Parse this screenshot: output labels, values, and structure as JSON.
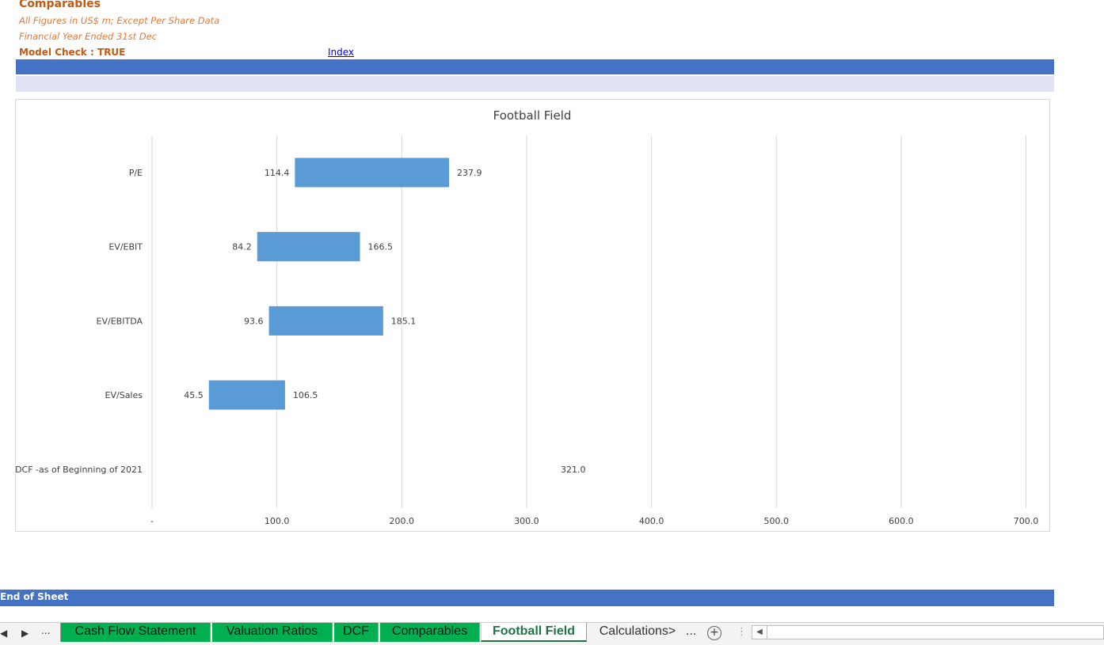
{
  "header": {
    "title": "Comparables",
    "subtitle1": "All Figures in US$ m; Except Per Share Data",
    "subtitle2": "Financial Year Ended 31st Dec",
    "model_check": "Model Check : TRUE",
    "index_link": "Index"
  },
  "colors": {
    "accent_blue": "#4472c4",
    "light_band": "#dfe3f4",
    "bar": "#5b9bd5",
    "header_orange": "#c55a11",
    "tab_green": "#00b050",
    "active_tab_text": "#217346"
  },
  "chart_data": {
    "type": "bar",
    "orientation": "horizontal",
    "subtype": "floating range (football field)",
    "title": "Football Field",
    "categories": [
      "P/E",
      "EV/EBIT",
      "EV/EBITDA",
      "EV/Sales",
      "DCF -as of Beginning of 2021"
    ],
    "series": [
      {
        "low": [
          114.4,
          84.2,
          93.6,
          45.5,
          321.0
        ],
        "high": [
          237.9,
          166.5,
          185.1,
          106.5,
          321.0
        ]
      }
    ],
    "low_labels": [
      "114.4",
      "84.2",
      "93.6",
      "45.5",
      ""
    ],
    "high_labels": [
      "237.9",
      "166.5",
      "185.1",
      "106.5",
      "321.0"
    ],
    "xlim": [
      0,
      700
    ],
    "x_ticks": [
      0,
      100,
      200,
      300,
      400,
      500,
      600,
      700
    ],
    "x_tick_labels": [
      "-",
      "100.0",
      "200.0",
      "300.0",
      "400.0",
      "500.0",
      "600.0",
      "700.0"
    ],
    "grid": "vertical",
    "legend": "none",
    "xlabel": "",
    "ylabel": ""
  },
  "footer": {
    "end_label": "End of Sheet"
  },
  "tabs": {
    "nav_prev": "◀",
    "nav_next": "▶",
    "nav_more": "...",
    "items": [
      {
        "label": "Cash Flow Statement"
      },
      {
        "label": "Valuation Ratios"
      },
      {
        "label": "DCF"
      },
      {
        "label": "Comparables"
      },
      {
        "label": "Football Field"
      },
      {
        "label": "Calculations>"
      }
    ],
    "more": "...",
    "add": "+",
    "scroll_left": "◀"
  }
}
